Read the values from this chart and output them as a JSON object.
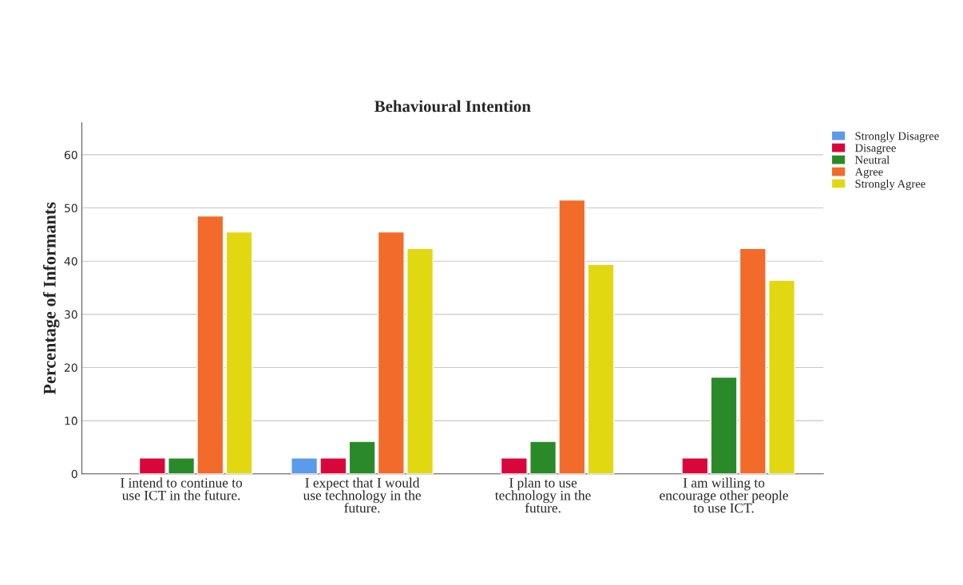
{
  "chart_data": {
    "type": "bar",
    "title": "Behavioural Intention",
    "ylabel": "Percentage of Informants",
    "categories": [
      "I intend to continue to use ICT in the future.",
      "I expect that I would use technology in the future.",
      "I plan to use technology in the future.",
      "I am willing to encourage other people to use ICT."
    ],
    "series": [
      {
        "name": "Strongly Disagree",
        "color": "#5b9bea",
        "values": [
          null,
          3.0,
          null,
          null
        ]
      },
      {
        "name": "Disagree",
        "color": "#d9063c",
        "values": [
          3.0,
          3.0,
          3.0,
          3.0
        ]
      },
      {
        "name": "Neutral",
        "color": "#2a8a2a",
        "values": [
          3.0,
          6.1,
          6.1,
          18.2
        ]
      },
      {
        "name": "Agree",
        "color": "#f26b2a",
        "values": [
          48.5,
          45.5,
          51.5,
          42.4
        ]
      },
      {
        "name": "Strongly Agree",
        "color": "#e2d812",
        "values": [
          45.5,
          42.4,
          39.4,
          36.4
        ]
      }
    ],
    "ylim": [
      0,
      66
    ],
    "yticks": [
      0,
      10,
      20,
      30,
      40,
      50,
      60
    ],
    "grid": "y",
    "legend": "top right"
  }
}
